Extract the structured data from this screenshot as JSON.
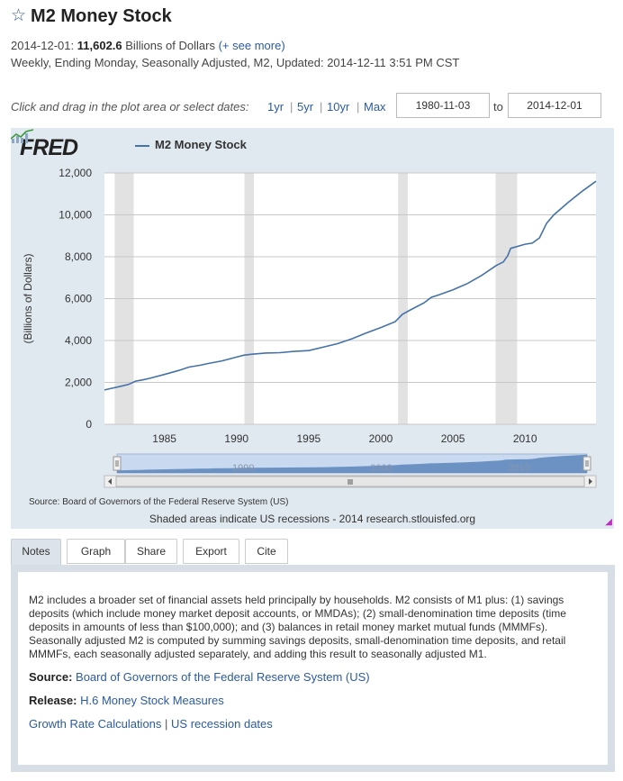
{
  "header": {
    "star": "☆",
    "title": "M2 Money Stock",
    "obs_date": "2014-12-01:",
    "obs_value": "11,602.6",
    "units": "Billions of Dollars",
    "see_more": "(+ see more)",
    "meta": "Weekly, Ending Monday, Seasonally Adjusted, M2, Updated: 2014-12-11 3:51 PM CST"
  },
  "date_controls": {
    "instruction": "Click and drag in the plot area or select dates:",
    "ranges": [
      "1yr",
      "5yr",
      "10yr",
      "Max"
    ],
    "separator": "|",
    "start": "1980-11-03",
    "to": "to",
    "end": "2014-12-01"
  },
  "chart_header": {
    "logo": "FRED",
    "legend": "M2 Money Stock"
  },
  "chart_data": {
    "type": "line",
    "title": "M2 Money Stock",
    "xlabel": "",
    "ylabel": "(Billions of Dollars)",
    "xlim": [
      1980.84,
      2014.92
    ],
    "ylim": [
      0,
      12000
    ],
    "x_ticks": [
      1985,
      1990,
      1995,
      2000,
      2005,
      2010
    ],
    "y_ticks": [
      0,
      2000,
      4000,
      6000,
      8000,
      10000,
      12000
    ],
    "y_tick_labels": [
      "0",
      "2,000",
      "4,000",
      "6,000",
      "8,000",
      "10,000",
      "12,000"
    ],
    "grid": true,
    "recessions": [
      [
        1981.55,
        1982.87
      ],
      [
        1990.55,
        1991.2
      ],
      [
        2001.2,
        2001.87
      ],
      [
        2007.96,
        2009.45
      ]
    ],
    "series": [
      {
        "name": "M2 Money Stock",
        "color": "#4572a7",
        "x": [
          1980.84,
          1981.5,
          1982.0,
          1982.5,
          1983.0,
          1983.5,
          1984.0,
          1985.0,
          1986.0,
          1986.7,
          1987.5,
          1988.0,
          1989.0,
          1990.0,
          1990.5,
          1991.0,
          1992.0,
          1993.0,
          1994.0,
          1995.0,
          1996.0,
          1997.0,
          1998.0,
          1999.0,
          2000.0,
          2001.0,
          2001.5,
          2002.0,
          2003.0,
          2003.5,
          2004.0,
          2005.0,
          2006.0,
          2007.0,
          2008.0,
          2008.5,
          2008.8,
          2009.0,
          2010.0,
          2010.5,
          2011.0,
          2011.5,
          2012.0,
          2013.0,
          2014.0,
          2014.92
        ],
        "values": [
          1640,
          1740,
          1820,
          1900,
          2060,
          2120,
          2200,
          2380,
          2570,
          2730,
          2820,
          2900,
          3030,
          3210,
          3300,
          3340,
          3400,
          3420,
          3480,
          3520,
          3680,
          3850,
          4080,
          4360,
          4620,
          4900,
          5250,
          5440,
          5800,
          6060,
          6170,
          6420,
          6720,
          7110,
          7580,
          7750,
          8050,
          8400,
          8600,
          8650,
          8900,
          9600,
          10000,
          10600,
          11150,
          11602.6
        ]
      }
    ],
    "navigator": {
      "x_ticks": [
        1990,
        2000,
        2010
      ]
    }
  },
  "footer": {
    "source": "Source: Board of Governors of the Federal Reserve System (US)",
    "shaded": "Shaded areas indicate US recessions - 2014 research.stlouisfed.org"
  },
  "tabs": [
    "Notes",
    "Graph",
    "Share",
    "Export",
    "Cite"
  ],
  "notes": {
    "description": "M2 includes a broader set of financial assets held principally by households. M2 consists of M1 plus: (1) savings deposits (which include money market deposit accounts, or MMDAs); (2) small-denomination time deposits (time deposits in amounts of less than $100,000); and (3) balances in retail money market mutual funds (MMMFs). Seasonally adjusted M2 is computed by summing savings deposits, small-denomination time deposits, and retail MMMFs, each seasonally adjusted separately, and adding this result to seasonally adjusted M1.",
    "source_label": "Source:",
    "source_value": "Board of Governors of the Federal Reserve System (US)",
    "release_label": "Release:",
    "release_value": "H.6 Money Stock Measures",
    "link1": "Growth Rate Calculations",
    "pipe": "|",
    "link2": "US recession dates"
  }
}
